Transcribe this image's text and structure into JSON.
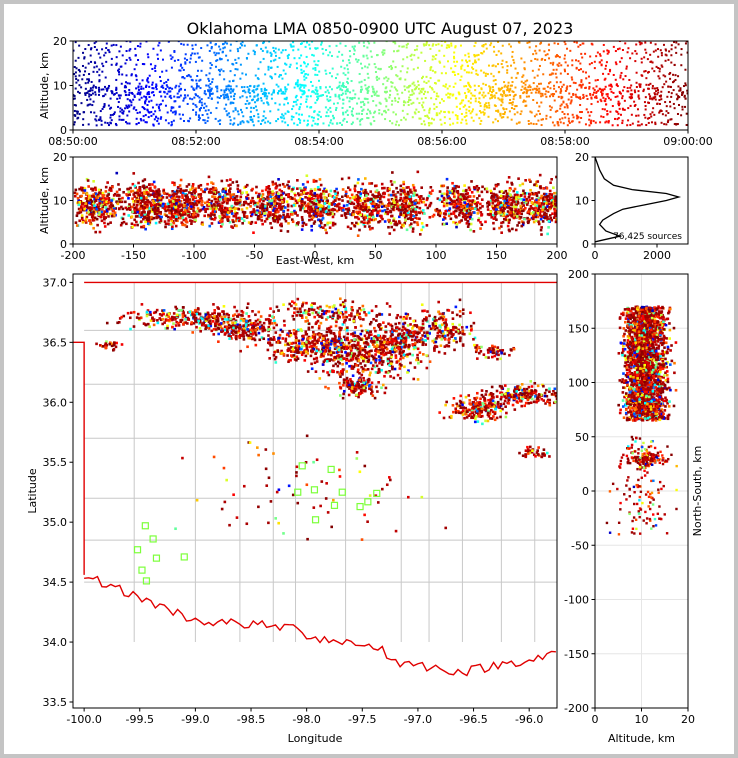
{
  "title": "Oklahoma LMA 0850-0900 UTC August 07, 2023",
  "chart_data": [
    {
      "type": "scatter",
      "panel": "time-altitude",
      "xlabel": "",
      "ylabel": "Altitude, km",
      "xticks": [
        "08:50:00",
        "08:52:00",
        "08:54:00",
        "08:56:00",
        "08:58:00",
        "09:00:00"
      ],
      "xlim": [
        0,
        10
      ],
      "ylim": [
        0,
        20
      ],
      "yticks": [
        0,
        10,
        20
      ],
      "color_map": "jet (by time)"
    },
    {
      "type": "scatter",
      "panel": "east-west-altitude",
      "xlabel": "East-West, km",
      "ylabel": "Altitude, km",
      "xlim": [
        -200,
        200
      ],
      "xticks": [
        -200,
        -150,
        -100,
        -50,
        0,
        50,
        100,
        150,
        200
      ],
      "ylim": [
        0,
        20
      ],
      "yticks": [
        0,
        10,
        20
      ]
    },
    {
      "type": "line",
      "panel": "altitude-histogram",
      "xlim": [
        0,
        3000
      ],
      "xticks": [
        0,
        2000
      ],
      "ylim": [
        0,
        20
      ],
      "yticks": [
        0,
        10,
        20
      ],
      "annotation": "76,425 sources",
      "profile": [
        [
          0,
          0.5
        ],
        [
          800,
          1.8
        ],
        [
          350,
          3
        ],
        [
          150,
          4.5
        ],
        [
          250,
          5.5
        ],
        [
          600,
          7
        ],
        [
          900,
          8
        ],
        [
          1600,
          9
        ],
        [
          2300,
          10
        ],
        [
          2700,
          10.8
        ],
        [
          2300,
          11.6
        ],
        [
          1200,
          12.5
        ],
        [
          600,
          13.5
        ],
        [
          300,
          15
        ],
        [
          150,
          17
        ],
        [
          50,
          19
        ],
        [
          0,
          20
        ]
      ]
    },
    {
      "type": "scatter",
      "panel": "plan-view",
      "xlabel": "Longitude",
      "ylabel": "Latitude",
      "xlim": [
        -100.1,
        -95.75
      ],
      "xticks": [
        "-100.0",
        "-99.5",
        "-99.0",
        "-98.5",
        "-98.0",
        "-97.5",
        "-97.0",
        "-96.5",
        "-96.0"
      ],
      "ylim": [
        33.45,
        37.07
      ],
      "yticks": [
        "33.5",
        "34.0",
        "34.5",
        "35.0",
        "35.5",
        "36.0",
        "36.5",
        "37.0"
      ],
      "stations": [
        [
          -99.45,
          34.97
        ],
        [
          -99.38,
          34.86
        ],
        [
          -99.52,
          34.77
        ],
        [
          -99.35,
          34.7
        ],
        [
          -99.48,
          34.6
        ],
        [
          -99.44,
          34.51
        ],
        [
          -99.1,
          34.71
        ],
        [
          -98.04,
          35.47
        ],
        [
          -97.78,
          35.44
        ],
        [
          -98.08,
          35.25
        ],
        [
          -97.93,
          35.27
        ],
        [
          -97.68,
          35.25
        ],
        [
          -97.37,
          35.24
        ],
        [
          -97.45,
          35.17
        ],
        [
          -97.52,
          35.13
        ],
        [
          -97.75,
          35.14
        ],
        [
          -97.92,
          35.02
        ]
      ],
      "clusters": [
        {
          "lon": -99.05,
          "lat": 36.7,
          "slon": 0.4,
          "slat": 0.06,
          "n": 260
        },
        {
          "lon": -98.55,
          "lat": 36.62,
          "slon": 0.25,
          "slat": 0.08,
          "n": 220
        },
        {
          "lon": -97.95,
          "lat": 36.48,
          "slon": 0.3,
          "slat": 0.1,
          "n": 320
        },
        {
          "lon": -97.5,
          "lat": 36.4,
          "slon": 0.3,
          "slat": 0.16,
          "n": 420
        },
        {
          "lon": -97.15,
          "lat": 36.55,
          "slon": 0.25,
          "slat": 0.14,
          "n": 260
        },
        {
          "lon": -96.75,
          "lat": 36.62,
          "slon": 0.18,
          "slat": 0.12,
          "n": 160
        },
        {
          "lon": -97.55,
          "lat": 36.12,
          "slon": 0.12,
          "slat": 0.06,
          "n": 110
        },
        {
          "lon": -97.8,
          "lat": 36.75,
          "slon": 0.35,
          "slat": 0.07,
          "n": 160
        },
        {
          "lon": -96.45,
          "lat": 35.95,
          "slon": 0.18,
          "slat": 0.07,
          "n": 200
        },
        {
          "lon": -96.05,
          "lat": 36.06,
          "slon": 0.22,
          "slat": 0.06,
          "n": 200
        },
        {
          "lon": -96.3,
          "lat": 36.42,
          "slon": 0.12,
          "slat": 0.04,
          "n": 50
        },
        {
          "lon": -95.95,
          "lat": 35.58,
          "slon": 0.12,
          "slat": 0.03,
          "n": 40
        },
        {
          "lon": -99.75,
          "lat": 36.47,
          "slon": 0.08,
          "slat": 0.03,
          "n": 25
        },
        {
          "lon": -98.0,
          "lat": 35.3,
          "slon": 0.7,
          "slat": 0.35,
          "n": 70
        }
      ]
    },
    {
      "type": "scatter",
      "panel": "altitude-north-south",
      "xlabel": "Altitude, km",
      "ylabel": "North-South, km",
      "xlim": [
        0,
        20
      ],
      "xticks": [
        0,
        10,
        20
      ],
      "ylim": [
        -200,
        200
      ],
      "yticks": [
        -200,
        -150,
        -100,
        -50,
        0,
        50,
        100,
        150,
        200
      ]
    }
  ]
}
